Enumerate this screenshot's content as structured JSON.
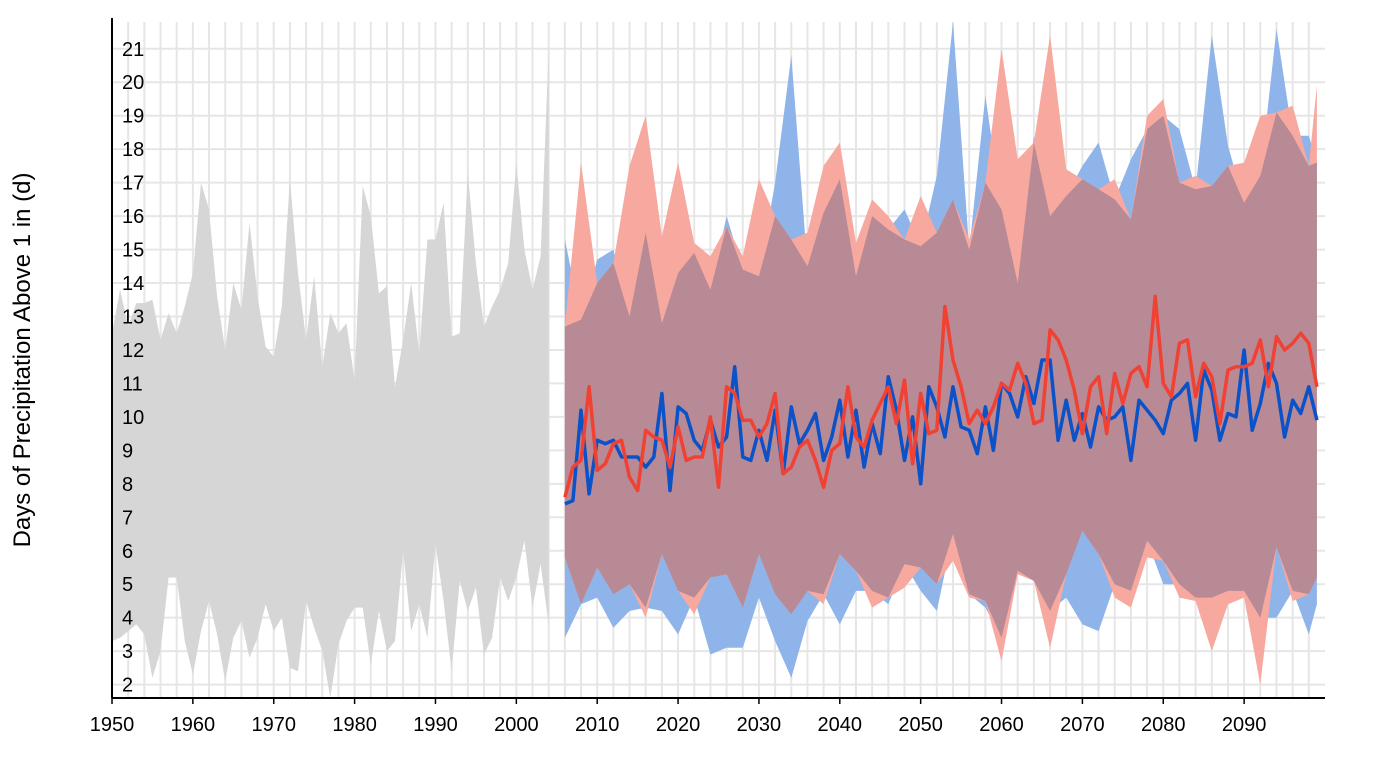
{
  "chart_data": {
    "type": "area",
    "title": "",
    "xlabel": "",
    "ylabel": "Days of Precipitation Above 1 in (d)",
    "xlim": [
      1950,
      2100
    ],
    "ylim": [
      1.6,
      21.8
    ],
    "grid": true,
    "legend": "none",
    "x_ticks": [
      "1950",
      "1960",
      "1970",
      "1980",
      "1990",
      "2000",
      "2010",
      "2020",
      "2030",
      "2040",
      "2050",
      "2060",
      "2070",
      "2080",
      "2090"
    ],
    "y_ticks": [
      "2",
      "3",
      "4",
      "5",
      "6",
      "7",
      "8",
      "9",
      "10",
      "11",
      "12",
      "13",
      "14",
      "15",
      "16",
      "17",
      "18",
      "19",
      "20",
      "21"
    ],
    "colors": {
      "observed_band": "#d6d6d6",
      "lower_emissions_band": "#8fb4ea",
      "higher_emissions_band": "#f7a9a0",
      "overlap_band": "#b88a96",
      "lower_emissions_line": "#0b52c9",
      "higher_emissions_line": "#f04133"
    },
    "series": [
      {
        "role": "observed_range",
        "type": "band",
        "x": [
          1950,
          1951,
          1952,
          1953,
          1954,
          1955,
          1956,
          1957,
          1958,
          1959,
          1960,
          1961,
          1962,
          1963,
          1964,
          1965,
          1966,
          1967,
          1968,
          1969,
          1970,
          1971,
          1972,
          1973,
          1974,
          1975,
          1976,
          1977,
          1978,
          1979,
          1980,
          1981,
          1982,
          1983,
          1984,
          1985,
          1986,
          1987,
          1988,
          1989,
          1990,
          1991,
          1992,
          1993,
          1994,
          1995,
          1996,
          1997,
          1998,
          1999,
          2000,
          2001,
          2002,
          2003,
          2004
        ],
        "high": [
          12.5,
          13.8,
          12.7,
          13.4,
          13.4,
          13.5,
          12.3,
          13.1,
          12.5,
          13.3,
          14.3,
          17.0,
          16.2,
          13.6,
          12.0,
          14.0,
          13.2,
          15.8,
          13.6,
          12.1,
          11.8,
          13.3,
          17.1,
          14.3,
          12.3,
          14.2,
          11.5,
          13.1,
          12.5,
          12.8,
          11.1,
          16.9,
          16.0,
          13.7,
          13.9,
          10.9,
          12.3,
          14.0,
          11.9,
          15.3,
          15.3,
          16.4,
          12.4,
          12.5,
          17.3,
          14.6,
          12.7,
          13.3,
          13.8,
          14.6,
          17.6,
          15.0,
          13.8,
          14.8,
          21.0
        ],
        "low": [
          3.3,
          3.4,
          3.6,
          3.8,
          3.5,
          2.2,
          3.0,
          5.2,
          5.2,
          3.3,
          2.3,
          3.6,
          4.5,
          3.5,
          2.1,
          3.4,
          3.9,
          2.8,
          3.4,
          4.4,
          3.6,
          4.0,
          2.5,
          2.4,
          4.5,
          3.7,
          3.0,
          1.6,
          3.2,
          3.9,
          4.3,
          4.3,
          2.6,
          4.2,
          3.0,
          3.3,
          6.0,
          3.6,
          4.4,
          3.4,
          6.2,
          4.5,
          2.4,
          5.1,
          4.2,
          4.9,
          2.9,
          3.4,
          5.2,
          4.5,
          5.2,
          6.3,
          4.3,
          5.6,
          3.8
        ]
      },
      {
        "role": "lower_emissions_range",
        "type": "band",
        "x": [
          2006,
          2008,
          2010,
          2012,
          2014,
          2016,
          2018,
          2020,
          2022,
          2024,
          2026,
          2028,
          2030,
          2032,
          2034,
          2036,
          2038,
          2040,
          2042,
          2044,
          2046,
          2048,
          2050,
          2052,
          2054,
          2056,
          2058,
          2060,
          2062,
          2064,
          2066,
          2068,
          2070,
          2072,
          2074,
          2076,
          2078,
          2080,
          2082,
          2084,
          2086,
          2088,
          2090,
          2092,
          2094,
          2096,
          2098,
          2099
        ],
        "high": [
          15.3,
          12.9,
          14.7,
          15.0,
          13.0,
          15.5,
          12.8,
          14.3,
          14.9,
          13.8,
          16.0,
          14.4,
          14.2,
          17.0,
          20.8,
          14.5,
          16.1,
          17.1,
          14.2,
          16.0,
          15.6,
          16.2,
          15.1,
          17.2,
          21.8,
          15.0,
          19.6,
          16.2,
          14.0,
          18.4,
          16.0,
          16.6,
          17.5,
          18.2,
          16.5,
          17.7,
          18.6,
          19.0,
          18.6,
          16.8,
          21.4,
          18.1,
          16.4,
          17.2,
          21.6,
          18.4,
          18.4,
          17.6
        ],
        "low": [
          3.4,
          4.4,
          4.6,
          3.7,
          4.2,
          4.3,
          4.2,
          3.5,
          4.6,
          2.9,
          3.1,
          3.1,
          4.6,
          3.3,
          2.2,
          3.9,
          4.7,
          3.8,
          4.8,
          4.8,
          4.4,
          5.6,
          4.8,
          4.2,
          6.5,
          4.7,
          4.3,
          3.4,
          5.4,
          5.1,
          4.2,
          4.6,
          3.8,
          3.6,
          5.0,
          4.8,
          6.3,
          5.0,
          5.0,
          4.6,
          4.6,
          4.8,
          4.8,
          4.0,
          4.0,
          4.8,
          3.5,
          4.4
        ]
      },
      {
        "role": "higher_emissions_range",
        "type": "band",
        "x": [
          2006,
          2008,
          2010,
          2012,
          2014,
          2016,
          2018,
          2020,
          2022,
          2024,
          2026,
          2028,
          2030,
          2032,
          2034,
          2036,
          2038,
          2040,
          2042,
          2044,
          2046,
          2048,
          2050,
          2052,
          2054,
          2056,
          2058,
          2060,
          2062,
          2064,
          2066,
          2068,
          2070,
          2072,
          2074,
          2076,
          2078,
          2080,
          2082,
          2084,
          2086,
          2088,
          2090,
          2092,
          2094,
          2096,
          2098,
          2099
        ],
        "high": [
          12.7,
          17.6,
          14.0,
          14.6,
          17.5,
          19.0,
          15.4,
          17.6,
          15.2,
          14.8,
          15.7,
          14.8,
          17.1,
          16.0,
          15.3,
          15.5,
          17.5,
          18.2,
          15.2,
          16.5,
          16.0,
          15.3,
          16.6,
          15.5,
          16.5,
          15.3,
          17.0,
          21.0,
          17.7,
          18.2,
          21.4,
          17.4,
          17.1,
          16.8,
          17.1,
          15.9,
          19.0,
          19.5,
          17.0,
          17.2,
          16.9,
          17.5,
          17.6,
          19.0,
          19.1,
          19.3,
          17.5,
          19.9
        ],
        "low": [
          5.8,
          4.4,
          5.5,
          4.7,
          5.0,
          4.0,
          5.9,
          4.8,
          4.1,
          5.2,
          5.3,
          4.3,
          5.9,
          4.7,
          4.1,
          4.8,
          4.4,
          5.9,
          5.4,
          4.3,
          4.6,
          4.9,
          5.5,
          5.0,
          5.7,
          4.6,
          4.5,
          2.7,
          5.3,
          5.1,
          3.1,
          5.3,
          6.6,
          5.9,
          4.6,
          4.3,
          5.8,
          5.7,
          4.6,
          4.5,
          3.0,
          4.4,
          4.6,
          2.0,
          6.1,
          4.5,
          4.7,
          5.2
        ]
      },
      {
        "role": "lower_emissions_median",
        "type": "line",
        "x": [
          2006,
          2007,
          2008,
          2009,
          2010,
          2011,
          2012,
          2013,
          2014,
          2015,
          2016,
          2017,
          2018,
          2019,
          2020,
          2021,
          2022,
          2023,
          2024,
          2025,
          2026,
          2027,
          2028,
          2029,
          2030,
          2031,
          2032,
          2033,
          2034,
          2035,
          2036,
          2037,
          2038,
          2039,
          2040,
          2041,
          2042,
          2043,
          2044,
          2045,
          2046,
          2047,
          2048,
          2049,
          2050,
          2051,
          2052,
          2053,
          2054,
          2055,
          2056,
          2057,
          2058,
          2059,
          2060,
          2061,
          2062,
          2063,
          2064,
          2065,
          2066,
          2067,
          2068,
          2069,
          2070,
          2071,
          2072,
          2073,
          2074,
          2075,
          2076,
          2077,
          2078,
          2079,
          2080,
          2081,
          2082,
          2083,
          2084,
          2085,
          2086,
          2087,
          2088,
          2089,
          2090,
          2091,
          2092,
          2093,
          2094,
          2095,
          2096,
          2097,
          2098,
          2099
        ],
        "y": [
          7.4,
          7.5,
          10.2,
          7.7,
          9.3,
          9.2,
          9.3,
          8.8,
          8.8,
          8.8,
          8.5,
          8.8,
          10.7,
          7.8,
          10.3,
          10.1,
          9.3,
          9.0,
          9.9,
          9.1,
          9.4,
          11.5,
          8.8,
          8.7,
          9.6,
          8.7,
          10.2,
          8.3,
          10.3,
          9.2,
          9.6,
          10.1,
          8.7,
          9.4,
          10.5,
          8.8,
          10.2,
          8.5,
          9.8,
          8.9,
          11.2,
          10.2,
          8.7,
          10.0,
          8.0,
          10.9,
          10.3,
          9.4,
          10.9,
          9.7,
          9.6,
          8.9,
          10.3,
          9.0,
          11.0,
          10.7,
          10.0,
          11.2,
          10.4,
          11.7,
          11.7,
          9.3,
          10.5,
          9.3,
          10.1,
          9.1,
          10.3,
          9.9,
          10.0,
          10.3,
          8.7,
          10.5,
          10.2,
          9.9,
          9.5,
          10.5,
          10.7,
          11.0,
          9.3,
          11.4,
          10.8,
          9.3,
          10.1,
          10.0,
          12.0,
          9.6,
          10.4,
          11.6,
          11.0,
          9.4,
          10.5,
          10.1,
          10.9,
          9.9
        ]
      },
      {
        "role": "higher_emissions_median",
        "type": "line",
        "x": [
          2006,
          2007,
          2008,
          2009,
          2010,
          2011,
          2012,
          2013,
          2014,
          2015,
          2016,
          2017,
          2018,
          2019,
          2020,
          2021,
          2022,
          2023,
          2024,
          2025,
          2026,
          2027,
          2028,
          2029,
          2030,
          2031,
          2032,
          2033,
          2034,
          2035,
          2036,
          2037,
          2038,
          2039,
          2040,
          2041,
          2042,
          2043,
          2044,
          2045,
          2046,
          2047,
          2048,
          2049,
          2050,
          2051,
          2052,
          2053,
          2054,
          2055,
          2056,
          2057,
          2058,
          2059,
          2060,
          2061,
          2062,
          2063,
          2064,
          2065,
          2066,
          2067,
          2068,
          2069,
          2070,
          2071,
          2072,
          2073,
          2074,
          2075,
          2076,
          2077,
          2078,
          2079,
          2080,
          2081,
          2082,
          2083,
          2084,
          2085,
          2086,
          2087,
          2088,
          2089,
          2090,
          2091,
          2092,
          2093,
          2094,
          2095,
          2096,
          2097,
          2098,
          2099
        ],
        "y": [
          7.6,
          8.5,
          8.7,
          10.9,
          8.4,
          8.6,
          9.2,
          9.3,
          8.2,
          7.8,
          9.6,
          9.4,
          9.3,
          8.5,
          9.7,
          8.7,
          8.8,
          8.8,
          10.0,
          7.9,
          10.9,
          10.7,
          9.9,
          9.9,
          9.4,
          9.8,
          10.7,
          8.3,
          8.5,
          9.1,
          9.3,
          8.7,
          7.9,
          9.0,
          9.2,
          10.9,
          9.4,
          9.1,
          9.9,
          10.4,
          10.9,
          9.8,
          11.1,
          8.6,
          10.7,
          9.5,
          9.6,
          13.3,
          11.7,
          10.9,
          9.8,
          10.2,
          9.8,
          10.3,
          11.0,
          10.8,
          11.6,
          11.0,
          9.8,
          9.9,
          12.6,
          12.3,
          11.7,
          10.8,
          9.5,
          10.9,
          11.2,
          9.5,
          11.3,
          10.4,
          11.3,
          11.5,
          10.9,
          13.6,
          11.0,
          10.6,
          12.2,
          12.3,
          10.6,
          11.6,
          11.2,
          9.8,
          11.4,
          11.5,
          11.5,
          11.6,
          12.3,
          10.9,
          12.4,
          12.0,
          12.2,
          12.5,
          12.2,
          10.9
        ]
      }
    ]
  }
}
